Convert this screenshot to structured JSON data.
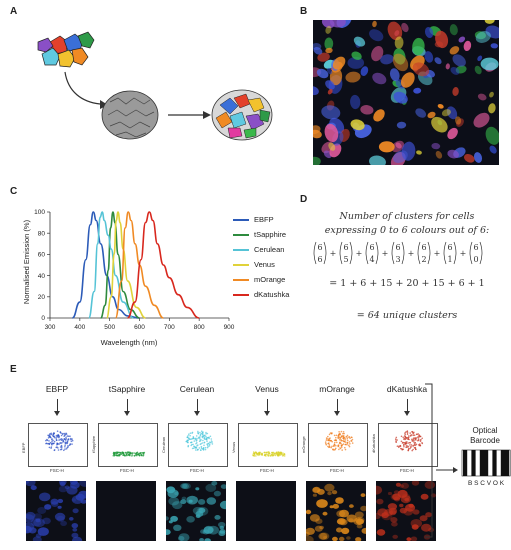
{
  "panels": {
    "a": "A",
    "b": "B",
    "c": "C",
    "d": "D",
    "e": "E"
  },
  "chart_data": {
    "type": "line",
    "title": "",
    "xlabel": "Wavelength (nm)",
    "ylabel": "Normalised Emission (%)",
    "xlim": [
      300,
      900
    ],
    "ylim": [
      0,
      100
    ],
    "xticks": [
      300,
      400,
      500,
      600,
      700,
      800,
      900
    ],
    "yticks": [
      0,
      20,
      40,
      60,
      80,
      100
    ],
    "legend_position": "right",
    "series": [
      {
        "name": "EBFP",
        "color": "#2c5bb8",
        "peak": 445,
        "x": [
          375,
          400,
          420,
          435,
          445,
          455,
          470,
          490,
          510,
          530,
          560,
          600
        ],
        "y": [
          0,
          15,
          55,
          88,
          100,
          92,
          70,
          40,
          20,
          8,
          2,
          0
        ]
      },
      {
        "name": "tSapphire",
        "color": "#2e8b3e",
        "peak": 511,
        "x": [
          470,
          485,
          495,
          503,
          511,
          518,
          528,
          545,
          570,
          600
        ],
        "y": [
          0,
          12,
          45,
          85,
          100,
          90,
          60,
          25,
          8,
          0
        ]
      },
      {
        "name": "Cerulean",
        "color": "#55c3d6",
        "peak": 475,
        "x": [
          430,
          448,
          460,
          468,
          475,
          482,
          495,
          505,
          520,
          545,
          580
        ],
        "y": [
          0,
          25,
          70,
          95,
          100,
          92,
          78,
          65,
          40,
          15,
          0
        ]
      },
      {
        "name": "Venus",
        "color": "#e0d23a",
        "peak": 528,
        "x": [
          490,
          505,
          515,
          522,
          528,
          535,
          545,
          560,
          590,
          620
        ],
        "y": [
          0,
          20,
          60,
          92,
          100,
          90,
          65,
          35,
          10,
          0
        ]
      },
      {
        "name": "mOrange",
        "color": "#f08a24",
        "peak": 562,
        "x": [
          520,
          540,
          552,
          562,
          572,
          585,
          600,
          620,
          650,
          680
        ],
        "y": [
          0,
          35,
          85,
          100,
          92,
          70,
          50,
          30,
          12,
          0
        ]
      },
      {
        "name": "dKatushka",
        "color": "#d8281e",
        "peak": 633,
        "x": [
          560,
          585,
          605,
          620,
          633,
          645,
          660,
          680,
          700,
          730,
          760,
          800
        ],
        "y": [
          0,
          15,
          55,
          90,
          100,
          92,
          70,
          50,
          38,
          22,
          10,
          0
        ]
      }
    ]
  },
  "formula": {
    "line1": "Number of clusters for cells",
    "line2": "expressing 0 to 6 colours out of 6:",
    "binomials": [
      [
        "6",
        "6"
      ],
      [
        "6",
        "5"
      ],
      [
        "6",
        "4"
      ],
      [
        "6",
        "3"
      ],
      [
        "6",
        "2"
      ],
      [
        "6",
        "1"
      ],
      [
        "6",
        "0"
      ]
    ],
    "sum_line": "= 1 + 6 + 15 + 20 + 15 + 6 + 1",
    "result_line": "= 64 unique clusters"
  },
  "flow": {
    "x_axis_label": "FSC-H",
    "panels": [
      {
        "title": "EBFP",
        "ylabel": "EBFP",
        "color": "#2b4fc4",
        "micro_color": "#2a3fb0",
        "shape": "blob",
        "micro_signal": true
      },
      {
        "title": "tSapphire",
        "ylabel": "tSapphire",
        "color": "#1f9a3a",
        "micro_color": "#0d0f17",
        "shape": "flat",
        "micro_signal": false
      },
      {
        "title": "Cerulean",
        "ylabel": "Cerulean",
        "color": "#4fc8dc",
        "micro_color": "#3aa6b4",
        "shape": "blob",
        "micro_signal": true
      },
      {
        "title": "Venus",
        "ylabel": "Venus",
        "color": "#d9d226",
        "micro_color": "#0d0f17",
        "shape": "flat",
        "micro_signal": false
      },
      {
        "title": "mOrange",
        "ylabel": "mOrange",
        "color": "#f07c1c",
        "micro_color": "#e08a1a",
        "shape": "blob",
        "micro_signal": true
      },
      {
        "title": "dKatushka",
        "ylabel": "dKatushka",
        "color": "#c83a2a",
        "micro_color": "#c0301c",
        "shape": "blob",
        "micro_signal": true
      }
    ]
  },
  "barcode": {
    "title_line1": "Optical",
    "title_line2": "Barcode",
    "letters": "B S C V O K",
    "bars": [
      1,
      0,
      1,
      0,
      1,
      1,
      0,
      1,
      0,
      1,
      1
    ]
  }
}
